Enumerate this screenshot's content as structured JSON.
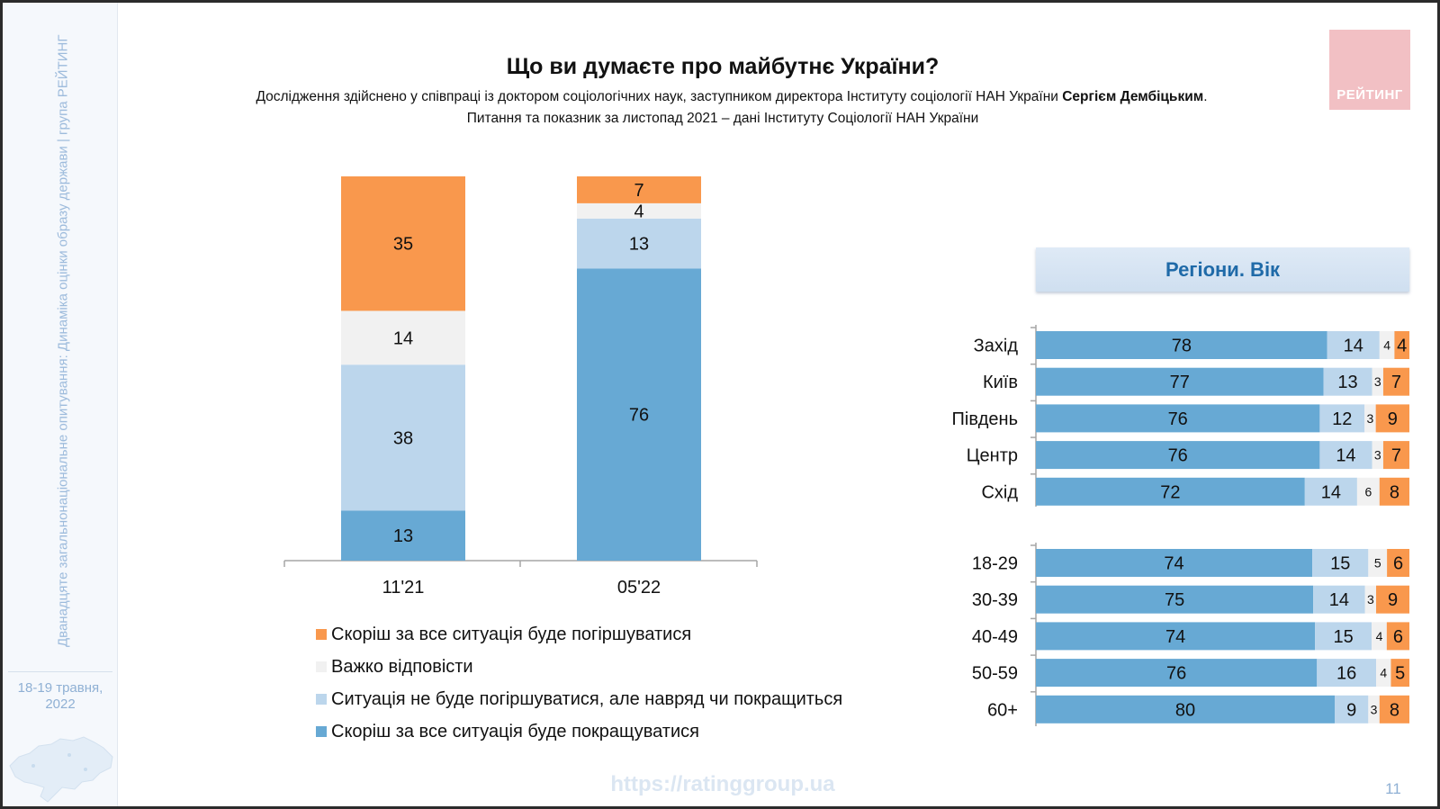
{
  "sidebar": {
    "vertical_text": "Дванадцяте загальнонаціональне опитування: Динаміка оцінки образу держави | група РЕЙТИНГ",
    "date": "18-19 травня, 2022"
  },
  "header": {
    "title": "Що ви думаєте про майбутнє України?",
    "subtitle_line1_prefix": "Дослідження здійснено у співпраці із доктором соціологічних наук, заступником директора Інституту соціології НАН України ",
    "subtitle_line1_bold": "Сергієм Дембіцьким",
    "subtitle_line1_suffix": ".",
    "subtitle_line2": "Питання та показник за листопад 2021 – дані Інституту Соціології НАН України"
  },
  "logo": {
    "text": "РЕЙТИНГ"
  },
  "colors": {
    "improve": "#67a9d4",
    "not_worse": "#bcd6ec",
    "hard": "#f1f1f1",
    "worse": "#f9984d"
  },
  "chart_data": [
    {
      "type": "bar",
      "stacked": true,
      "categories": [
        "11'21",
        "05'22"
      ],
      "series": [
        {
          "name": "Скоріш за все ситуація буде покращуватися",
          "key": "improve",
          "values": [
            13,
            76
          ]
        },
        {
          "name": "Ситуація не буде погіршуватися, але навряд чи покращиться",
          "key": "not_worse",
          "values": [
            38,
            13
          ]
        },
        {
          "name": "Важко відповісти",
          "key": "hard",
          "values": [
            14,
            4
          ]
        },
        {
          "name": "Скоріш за все ситуація буде погіршуватися",
          "key": "worse",
          "values": [
            35,
            7
          ]
        }
      ],
      "legend": [
        {
          "key": "worse",
          "label": "Скоріш за все ситуація буде погіршуватися"
        },
        {
          "key": "hard",
          "label": "Важко відповісти"
        },
        {
          "key": "not_worse",
          "label": "Ситуація не буде погіршуватися, але навряд чи покращиться"
        },
        {
          "key": "improve",
          "label": "Скоріш за все ситуація буде покращуватися"
        }
      ],
      "legend_position": "bottom",
      "ylim": [
        0,
        100
      ]
    },
    {
      "type": "bar",
      "orientation": "horizontal",
      "stacked": true,
      "title": "Регіони. Вік",
      "groups": [
        {
          "rows": [
            {
              "label": "Захід",
              "values": [
                78,
                14,
                4,
                4
              ]
            },
            {
              "label": "Київ",
              "values": [
                77,
                13,
                3,
                7
              ]
            },
            {
              "label": "Південь",
              "values": [
                76,
                12,
                3,
                9
              ]
            },
            {
              "label": "Центр",
              "values": [
                76,
                14,
                3,
                7
              ]
            },
            {
              "label": "Схід",
              "values": [
                72,
                14,
                6,
                8
              ]
            }
          ]
        },
        {
          "rows": [
            {
              "label": "18-29",
              "values": [
                74,
                15,
                5,
                6
              ]
            },
            {
              "label": "30-39",
              "values": [
                75,
                14,
                3,
                9
              ]
            },
            {
              "label": "40-49",
              "values": [
                74,
                15,
                4,
                6
              ]
            },
            {
              "label": "50-59",
              "values": [
                76,
                16,
                4,
                5
              ]
            },
            {
              "label": "60+",
              "values": [
                80,
                9,
                3,
                8
              ]
            }
          ]
        }
      ],
      "segment_keys": [
        "improve",
        "not_worse",
        "hard",
        "worse"
      ]
    }
  ],
  "footer": {
    "url": "https://ratinggroup.ua",
    "page_number": "11"
  }
}
